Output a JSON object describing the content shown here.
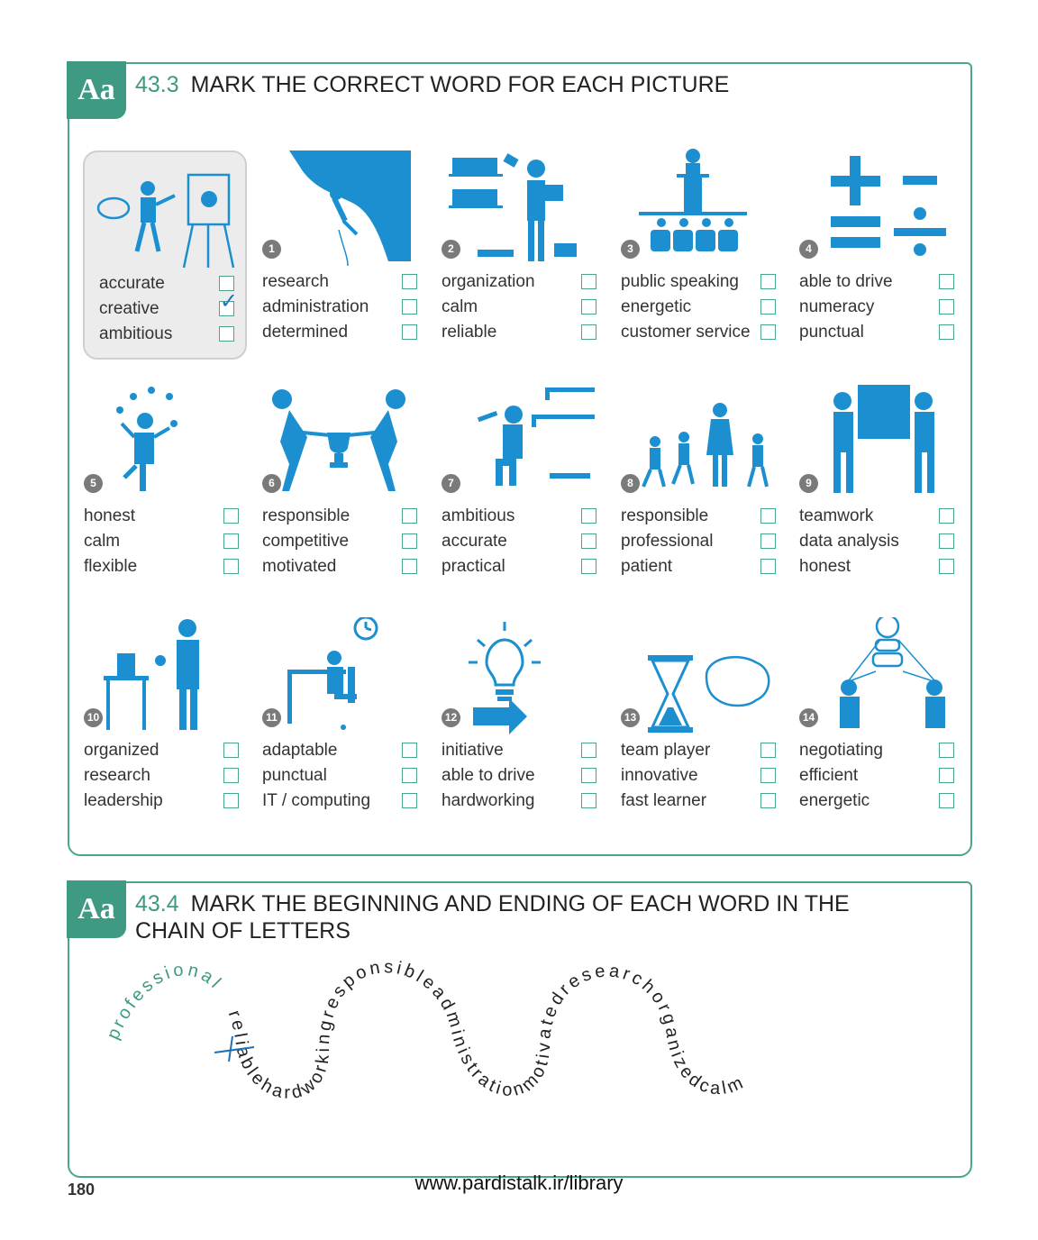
{
  "exercise1": {
    "badge": "Aa",
    "number": "43.3",
    "title": "MARK THE CORRECT WORD FOR EACH PICTURE",
    "items": [
      {
        "number": "",
        "icon": "painter-icon",
        "options": [
          "accurate",
          "creative",
          "ambitious"
        ],
        "checked": 1
      },
      {
        "number": "1",
        "icon": "rock-climber-icon",
        "options": [
          "research",
          "administration",
          "determined"
        ]
      },
      {
        "number": "2",
        "icon": "bookshelf-organizer-icon",
        "options": [
          "organization",
          "calm",
          "reliable"
        ]
      },
      {
        "number": "3",
        "icon": "speaker-podium-icon",
        "options": [
          "public speaking",
          "energetic",
          "customer service"
        ]
      },
      {
        "number": "4",
        "icon": "math-symbols-icon",
        "options": [
          "able to drive",
          "numeracy",
          "punctual"
        ]
      },
      {
        "number": "5",
        "icon": "juggler-icon",
        "options": [
          "honest",
          "calm",
          "flexible"
        ]
      },
      {
        "number": "6",
        "icon": "tug-of-war-trophy-icon",
        "options": [
          "responsible",
          "competitive",
          "motivated"
        ]
      },
      {
        "number": "7",
        "icon": "shelf-builder-icon",
        "options": [
          "ambitious",
          "accurate",
          "practical"
        ]
      },
      {
        "number": "8",
        "icon": "teacher-children-icon",
        "options": [
          "responsible",
          "professional",
          "patient"
        ]
      },
      {
        "number": "9",
        "icon": "two-movers-box-icon",
        "options": [
          "teamwork",
          "data analysis",
          "honest"
        ]
      },
      {
        "number": "10",
        "icon": "scientist-lab-icon",
        "options": [
          "organized",
          "research",
          "leadership"
        ]
      },
      {
        "number": "11",
        "icon": "desk-worker-clock-icon",
        "options": [
          "adaptable",
          "punctual",
          "IT / computing"
        ]
      },
      {
        "number": "12",
        "icon": "lightbulb-arrow-icon",
        "options": [
          "initiative",
          "able to drive",
          "hardworking"
        ]
      },
      {
        "number": "13",
        "icon": "hourglass-brain-icon",
        "options": [
          "team player",
          "innovative",
          "fast learner"
        ]
      },
      {
        "number": "14",
        "icon": "negotiation-icon",
        "options": [
          "negotiating",
          "efficient",
          "energetic"
        ]
      }
    ]
  },
  "exercise2": {
    "badge": "Aa",
    "number": "43.4",
    "title": "MARK THE BEGINNING AND ENDING OF EACH WORD IN THE CHAIN OF LETTERS",
    "example_word": "professional",
    "letter_chain": "reliablehardworkingresponsibleadministrationmotivatedresearchorganizedcalm"
  },
  "footer": {
    "url": "www.pardistalk.ir/library",
    "page_number": "180"
  },
  "colors": {
    "accent_green": "#3e9a83",
    "illustration_blue": "#1b8fd0",
    "checkbox_border": "#4aa58f",
    "tick_blue": "#2673b8"
  }
}
